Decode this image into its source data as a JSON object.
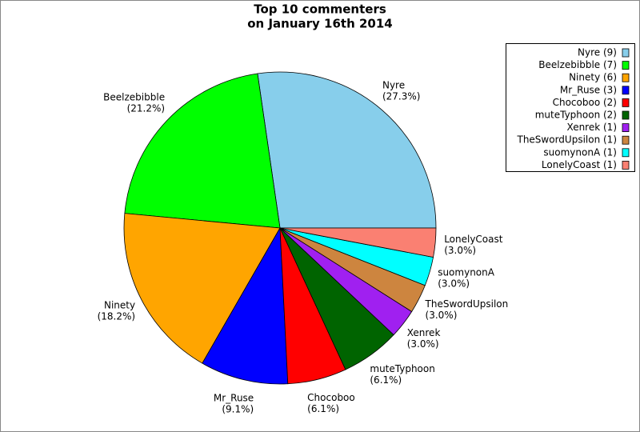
{
  "chart_data": {
    "type": "pie",
    "title": [
      "Top 10 commenters",
      "on January 16th 2014"
    ],
    "categories": [
      "Nyre",
      "Beelzebibble",
      "Ninety",
      "Mr_Ruse",
      "Chocoboo",
      "muteTyphoon",
      "Xenrek",
      "TheSwordUpsilon",
      "suomynonA",
      "LonelyCoast"
    ],
    "values": [
      27.3,
      21.2,
      18.2,
      9.1,
      6.1,
      6.1,
      3.0,
      3.0,
      3.0,
      3.0
    ],
    "value_labels": [
      "(27.3%)",
      "(21.2%)",
      "(18.2%)",
      "(9.1%)",
      "(6.1%)",
      "(6.1%)",
      "(3.0%)",
      "(3.0%)",
      "(3.0%)",
      "(3.0%)"
    ],
    "legend_labels": [
      "Nyre (9)",
      "Beelzebibble (7)",
      "Ninety (6)",
      "Mr_Ruse (3)",
      "Chocoboo (2)",
      "muteTyphoon (2)",
      "Xenrek (1)",
      "TheSwordUpsilon (1)",
      "suomynonA (1)",
      "LonelyCoast (1)"
    ],
    "colors": [
      "#87ceeb",
      "#00ff00",
      "#ffa500",
      "#0000ff",
      "#ff0000",
      "#006400",
      "#a020f0",
      "#cd853f",
      "#00ffff",
      "#fa8072"
    ],
    "legend": "upper right"
  }
}
